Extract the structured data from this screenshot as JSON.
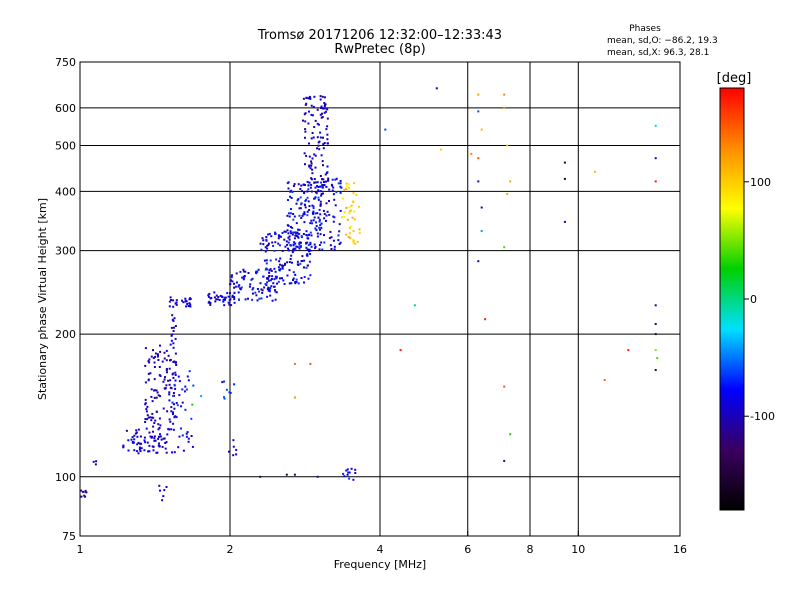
{
  "chart_data": {
    "type": "scatter",
    "title": "Tromsø 20171206 12:32:00–12:33:43",
    "subtitle": "RwPretec (8p)",
    "phases": {
      "heading": "Phases",
      "line_o": "mean, sd,O:  −86.2, 19.3",
      "line_x": "mean, sd,X:   96.3, 28.1"
    },
    "xlabel": "Frequency [MHz]",
    "ylabel": "Stationary phase Virtual Height [km]",
    "x_scale": "log",
    "y_scale": "log",
    "xlim": [
      1,
      16
    ],
    "ylim": [
      75,
      750
    ],
    "x_ticks": [
      1,
      2,
      4,
      6,
      8,
      10,
      16
    ],
    "y_ticks": [
      75,
      100,
      200,
      300,
      400,
      500,
      600,
      750
    ],
    "x_gridlines": [
      2,
      4,
      6,
      8,
      10
    ],
    "y_gridlines": [
      100,
      200,
      300,
      400,
      500,
      600
    ],
    "grid": true,
    "colorbar": {
      "label": "[deg]",
      "range": [
        -180,
        180
      ],
      "ticks": [
        100,
        0,
        -100
      ],
      "colors": [
        "#000000",
        "#3a0060",
        "#0000ff",
        "#00e0ff",
        "#00d000",
        "#ffff00",
        "#ff8c00",
        "#ff0000"
      ]
    },
    "clusters": [
      {
        "f": [
          1.0,
          1.03
        ],
        "h": [
          90,
          94
        ],
        "phase": [
          -120,
          -100
        ],
        "n": 8
      },
      {
        "f": [
          1.06,
          1.08
        ],
        "h": [
          105,
          112
        ],
        "phase": [
          -110,
          -90
        ],
        "n": 3
      },
      {
        "f": [
          1.22,
          1.5
        ],
        "h": [
          112,
          126
        ],
        "phase": [
          -115,
          -75
        ],
        "n": 70
      },
      {
        "f": [
          1.35,
          1.56
        ],
        "h": [
          125,
          190
        ],
        "phase": [
          -115,
          -80
        ],
        "n": 120
      },
      {
        "f": [
          1.42,
          1.5
        ],
        "h": [
          88,
          96
        ],
        "phase": [
          -110,
          -90
        ],
        "n": 6
      },
      {
        "f": [
          1.5,
          1.68
        ],
        "h": [
          228,
          240
        ],
        "phase": [
          -110,
          -80
        ],
        "n": 25
      },
      {
        "f": [
          1.52,
          1.56
        ],
        "h": [
          190,
          225
        ],
        "phase": [
          -110,
          -80
        ],
        "n": 14
      },
      {
        "f": [
          1.53,
          1.7
        ],
        "h": [
          112,
          170
        ],
        "phase": [
          -100,
          -60
        ],
        "n": 40
      },
      {
        "f": [
          1.8,
          2.05
        ],
        "h": [
          230,
          245
        ],
        "phase": [
          -110,
          -70
        ],
        "n": 40
      },
      {
        "f": [
          1.92,
          2.05
        ],
        "h": [
          140,
          160
        ],
        "phase": [
          -90,
          -50
        ],
        "n": 8
      },
      {
        "f": [
          1.98,
          2.08
        ],
        "h": [
          108,
          122
        ],
        "phase": [
          -110,
          -80
        ],
        "n": 6
      },
      {
        "f": [
          2.0,
          2.5
        ],
        "h": [
          235,
          275
        ],
        "phase": [
          -110,
          -60
        ],
        "n": 90
      },
      {
        "f": [
          2.3,
          2.9
        ],
        "h": [
          255,
          330
        ],
        "phase": [
          -110,
          -60
        ],
        "n": 150
      },
      {
        "f": [
          2.6,
          3.1
        ],
        "h": [
          300,
          420
        ],
        "phase": [
          -110,
          -60
        ],
        "n": 170
      },
      {
        "f": [
          2.8,
          3.15
        ],
        "h": [
          400,
          640
        ],
        "phase": [
          -115,
          -80
        ],
        "n": 110
      },
      {
        "f": [
          3.0,
          3.35
        ],
        "h": [
          300,
          430
        ],
        "phase": [
          -110,
          -60
        ],
        "n": 60
      },
      {
        "f": [
          3.35,
          3.65
        ],
        "h": [
          310,
          420
        ],
        "phase": [
          80,
          120
        ],
        "n": 40
      },
      {
        "f": [
          3.35,
          3.6
        ],
        "h": [
          98,
          104
        ],
        "phase": [
          -110,
          -60
        ],
        "n": 12
      }
    ],
    "sparse_points": [
      [
        5.2,
        660,
        -110
      ],
      [
        4.1,
        540,
        -60
      ],
      [
        5.3,
        490,
        100
      ],
      [
        6.3,
        640,
        120
      ],
      [
        6.3,
        590,
        -60
      ],
      [
        6.4,
        540,
        110
      ],
      [
        6.3,
        470,
        150
      ],
      [
        6.1,
        480,
        130
      ],
      [
        6.3,
        420,
        -100
      ],
      [
        6.4,
        370,
        -110
      ],
      [
        6.4,
        330,
        -40
      ],
      [
        6.3,
        285,
        -100
      ],
      [
        7.1,
        640,
        130
      ],
      [
        7.1,
        600,
        130
      ],
      [
        7.2,
        500,
        100
      ],
      [
        7.3,
        420,
        120
      ],
      [
        7.2,
        395,
        115
      ],
      [
        7.1,
        305,
        40
      ],
      [
        7.1,
        155,
        150
      ],
      [
        7.3,
        123,
        30
      ],
      [
        7.1,
        108,
        -120
      ],
      [
        9.4,
        460,
        -140
      ],
      [
        9.4,
        425,
        -150
      ],
      [
        9.4,
        345,
        -110
      ],
      [
        10.8,
        440,
        110
      ],
      [
        11.3,
        160,
        140
      ],
      [
        12.6,
        185,
        170
      ],
      [
        14.3,
        550,
        -30
      ],
      [
        14.3,
        470,
        -100
      ],
      [
        14.3,
        420,
        170
      ],
      [
        14.3,
        230,
        -100
      ],
      [
        14.3,
        210,
        -120
      ],
      [
        14.3,
        200,
        -140
      ],
      [
        14.3,
        185,
        50
      ],
      [
        14.4,
        178,
        40
      ],
      [
        14.3,
        168,
        -140
      ],
      [
        6.5,
        215,
        170
      ],
      [
        4.7,
        230,
        0
      ],
      [
        4.4,
        185,
        170
      ],
      [
        2.7,
        173,
        140
      ],
      [
        2.9,
        173,
        150
      ],
      [
        2.7,
        147,
        130
      ],
      [
        2.7,
        101,
        -120
      ],
      [
        2.6,
        101,
        -140
      ],
      [
        2.3,
        100,
        -140
      ],
      [
        3.0,
        100,
        -110
      ],
      [
        1.68,
        142,
        30
      ],
      [
        1.75,
        148,
        -40
      ]
    ]
  }
}
